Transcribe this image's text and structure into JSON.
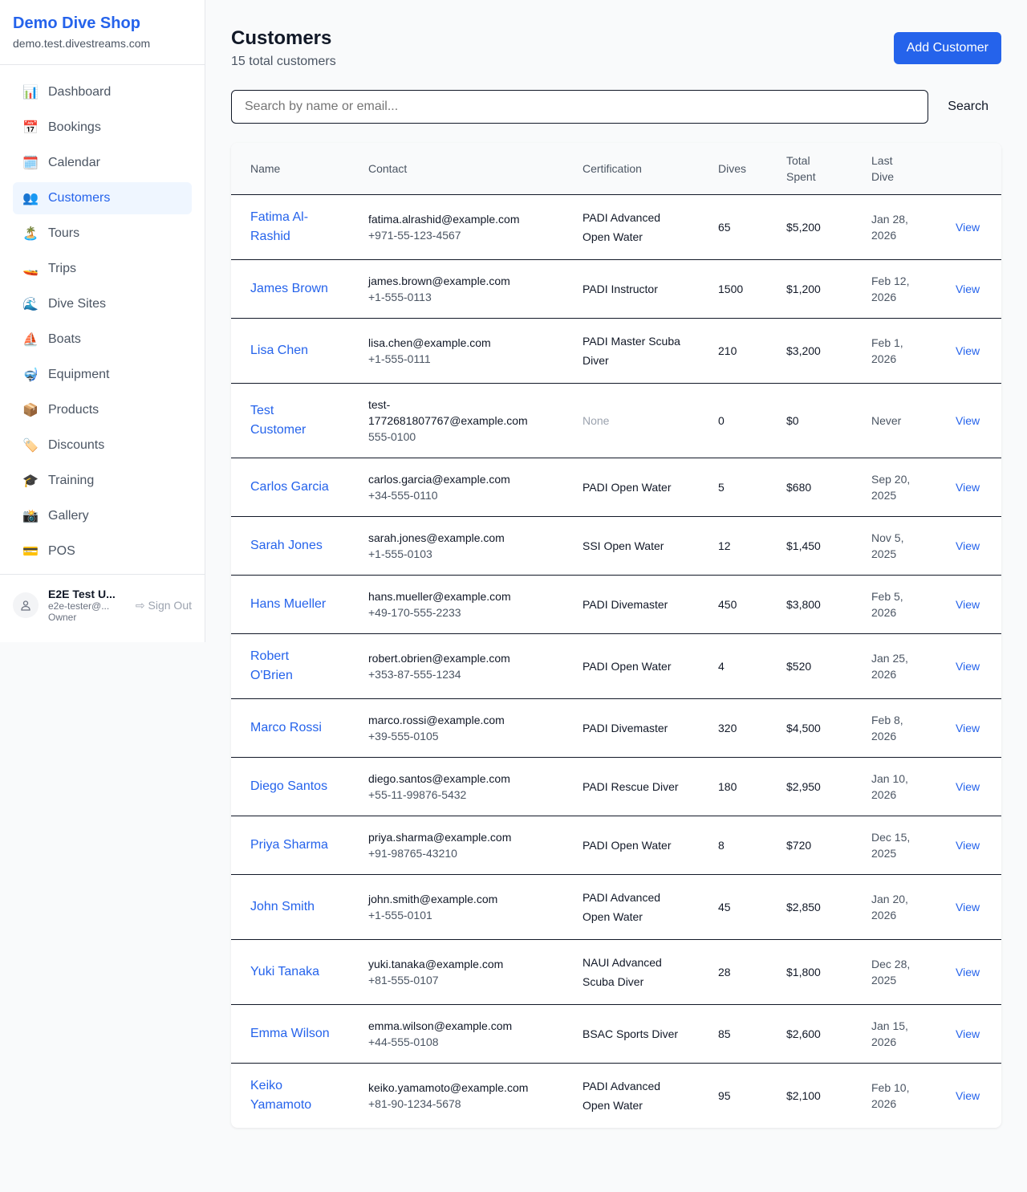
{
  "sidebar": {
    "shop_name": "Demo Dive Shop",
    "domain": "demo.test.divestreams.com",
    "items": [
      {
        "label": "Dashboard",
        "icon": "📊",
        "icon_name": "bar-chart-icon"
      },
      {
        "label": "Bookings",
        "icon": "📅",
        "icon_name": "calendar-date-icon"
      },
      {
        "label": "Calendar",
        "icon": "🗓️",
        "icon_name": "calendar-icon"
      },
      {
        "label": "Customers",
        "icon": "👥",
        "icon_name": "users-icon",
        "active": true
      },
      {
        "label": "Tours",
        "icon": "🏝️",
        "icon_name": "island-icon"
      },
      {
        "label": "Trips",
        "icon": "🚤",
        "icon_name": "boat-icon"
      },
      {
        "label": "Dive Sites",
        "icon": "🌊",
        "icon_name": "wave-icon"
      },
      {
        "label": "Boats",
        "icon": "⛵",
        "icon_name": "sailboat-icon"
      },
      {
        "label": "Equipment",
        "icon": "🤿",
        "icon_name": "diving-mask-icon"
      },
      {
        "label": "Products",
        "icon": "📦",
        "icon_name": "package-icon"
      },
      {
        "label": "Discounts",
        "icon": "🏷️",
        "icon_name": "tag-icon"
      },
      {
        "label": "Training",
        "icon": "🎓",
        "icon_name": "graduation-cap-icon"
      },
      {
        "label": "Gallery",
        "icon": "📸",
        "icon_name": "camera-icon"
      },
      {
        "label": "POS",
        "icon": "💳",
        "icon_name": "credit-card-icon"
      }
    ],
    "user": {
      "name": "E2E Test U...",
      "email": "e2e-tester@...",
      "role": "Owner",
      "sign_out": "Sign Out"
    }
  },
  "header": {
    "title": "Customers",
    "subtitle": "15 total customers",
    "add_button": "Add Customer"
  },
  "search": {
    "placeholder": "Search by name or email...",
    "value": "",
    "button": "Search"
  },
  "table": {
    "columns": [
      "Name",
      "Contact",
      "Certification",
      "Dives",
      "Total Spent",
      "Last Dive",
      ""
    ],
    "view_label": "View",
    "rows": [
      {
        "name": "Fatima Al-Rashid",
        "email": "fatima.alrashid@example.com",
        "phone": "+971-55-123-4567",
        "cert": "PADI Advanced Open Water",
        "dives": "65",
        "spent": "$5,200",
        "last": "Jan 28, 2026"
      },
      {
        "name": "James Brown",
        "email": "james.brown@example.com",
        "phone": "+1-555-0113",
        "cert": "PADI Instructor",
        "dives": "1500",
        "spent": "$1,200",
        "last": "Feb 12, 2026"
      },
      {
        "name": "Lisa Chen",
        "email": "lisa.chen@example.com",
        "phone": "+1-555-0111",
        "cert": "PADI Master Scuba Diver",
        "dives": "210",
        "spent": "$3,200",
        "last": "Feb 1, 2026"
      },
      {
        "name": "Test Customer",
        "email": "test-1772681807767@example.com",
        "phone": "555-0100",
        "cert": "None",
        "dives": "0",
        "spent": "$0",
        "last": "Never"
      },
      {
        "name": "Carlos Garcia",
        "email": "carlos.garcia@example.com",
        "phone": "+34-555-0110",
        "cert": "PADI Open Water",
        "dives": "5",
        "spent": "$680",
        "last": "Sep 20, 2025"
      },
      {
        "name": "Sarah Jones",
        "email": "sarah.jones@example.com",
        "phone": "+1-555-0103",
        "cert": "SSI Open Water",
        "dives": "12",
        "spent": "$1,450",
        "last": "Nov 5, 2025"
      },
      {
        "name": "Hans Mueller",
        "email": "hans.mueller@example.com",
        "phone": "+49-170-555-2233",
        "cert": "PADI Divemaster",
        "dives": "450",
        "spent": "$3,800",
        "last": "Feb 5, 2026"
      },
      {
        "name": "Robert O'Brien",
        "email": "robert.obrien@example.com",
        "phone": "+353-87-555-1234",
        "cert": "PADI Open Water",
        "dives": "4",
        "spent": "$520",
        "last": "Jan 25, 2026"
      },
      {
        "name": "Marco Rossi",
        "email": "marco.rossi@example.com",
        "phone": "+39-555-0105",
        "cert": "PADI Divemaster",
        "dives": "320",
        "spent": "$4,500",
        "last": "Feb 8, 2026"
      },
      {
        "name": "Diego Santos",
        "email": "diego.santos@example.com",
        "phone": "+55-11-99876-5432",
        "cert": "PADI Rescue Diver",
        "dives": "180",
        "spent": "$2,950",
        "last": "Jan 10, 2026"
      },
      {
        "name": "Priya Sharma",
        "email": "priya.sharma@example.com",
        "phone": "+91-98765-43210",
        "cert": "PADI Open Water",
        "dives": "8",
        "spent": "$720",
        "last": "Dec 15, 2025"
      },
      {
        "name": "John Smith",
        "email": "john.smith@example.com",
        "phone": "+1-555-0101",
        "cert": "PADI Advanced Open Water",
        "dives": "45",
        "spent": "$2,850",
        "last": "Jan 20, 2026"
      },
      {
        "name": "Yuki Tanaka",
        "email": "yuki.tanaka@example.com",
        "phone": "+81-555-0107",
        "cert": "NAUI Advanced Scuba Diver",
        "dives": "28",
        "spent": "$1,800",
        "last": "Dec 28, 2025"
      },
      {
        "name": "Emma Wilson",
        "email": "emma.wilson@example.com",
        "phone": "+44-555-0108",
        "cert": "BSAC Sports Diver",
        "dives": "85",
        "spent": "$2,600",
        "last": "Jan 15, 2026"
      },
      {
        "name": "Keiko Yamamoto",
        "email": "keiko.yamamoto@example.com",
        "phone": "+81-90-1234-5678",
        "cert": "PADI Advanced Open Water",
        "dives": "95",
        "spent": "$2,100",
        "last": "Feb 10, 2026"
      }
    ]
  }
}
